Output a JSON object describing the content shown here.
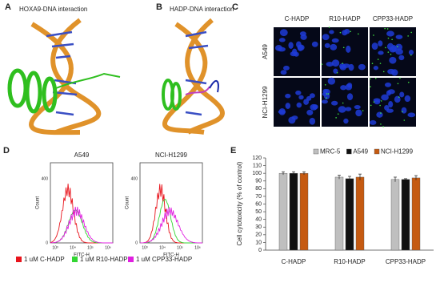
{
  "panels": {
    "a": {
      "label": "A",
      "title": "HOXA9-DNA interaction"
    },
    "b": {
      "label": "B",
      "title": "HADP-DNA interaction"
    },
    "c": {
      "label": "C",
      "columns": [
        "C-HADP",
        "R10-HADP",
        "CPP33-HADP"
      ],
      "rows": [
        "A549",
        "NCI-H1299"
      ]
    },
    "d": {
      "label": "D",
      "plots": [
        {
          "title": "A549"
        },
        {
          "title": "NCI-H1299"
        }
      ],
      "ylabel": "Count",
      "xlabel": "FITC-H",
      "yticklabels": [
        "0",
        "400"
      ],
      "xticklabels": [
        "10³",
        "10⁴",
        "10⁵",
        "10⁶"
      ],
      "legend": [
        {
          "name": "1 uM C-HADP",
          "color": "#e8141c"
        },
        {
          "name": "1 uM R10-HADP",
          "color": "#33d633"
        },
        {
          "name": "1 uM CPP33-HADP",
          "color": "#e020e0"
        }
      ]
    },
    "e": {
      "label": "E"
    }
  },
  "chart_data": {
    "type": "bar",
    "ylabel": "Cell cytotoxicity (% of control)",
    "categories": [
      "C-HADP",
      "R10-HADP",
      "CPP33-HADP"
    ],
    "series": [
      {
        "name": "MRC-5",
        "color": "#bfbfbf",
        "values": [
          100,
          95,
          92
        ],
        "errors": [
          2,
          2.5,
          3
        ]
      },
      {
        "name": "A549",
        "color": "#111111",
        "values": [
          100,
          93,
          92
        ],
        "errors": [
          2,
          3,
          1
        ]
      },
      {
        "name": "NCI-H1299",
        "color": "#c55a11",
        "values": [
          100,
          95,
          94
        ],
        "errors": [
          2,
          4,
          3
        ]
      }
    ],
    "ylim": [
      0,
      120
    ],
    "yticks": [
      0,
      10,
      20,
      30,
      40,
      50,
      60,
      70,
      80,
      90,
      100,
      110,
      120
    ],
    "legend": "top"
  }
}
